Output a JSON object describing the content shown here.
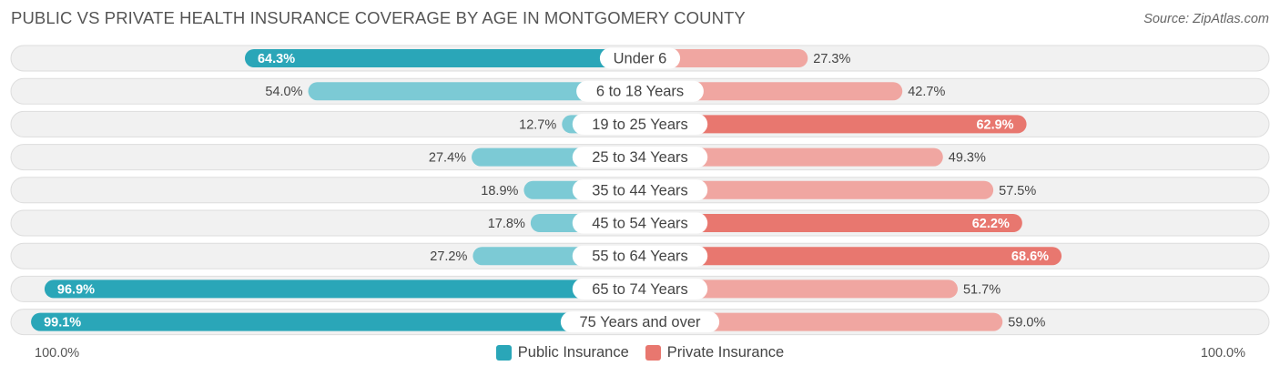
{
  "header": {
    "title": "PUBLIC VS PRIVATE HEALTH INSURANCE COVERAGE BY AGE IN MONTGOMERY COUNTY",
    "source": "Source: ZipAtlas.com"
  },
  "axis": {
    "left_label": "100.0%",
    "right_label": "100.0%"
  },
  "legend": {
    "public_label": "Public Insurance",
    "private_label": "Private Insurance"
  },
  "colors": {
    "public_dark": "#2aa6b8",
    "public_light": "#7ccad5",
    "private_dark": "#e8776f",
    "private_light": "#f0a6a1",
    "row_bg": "#f1f1f1",
    "row_border": "#dddddd"
  },
  "chart_data": {
    "type": "bar",
    "orientation": "horizontal-diverging",
    "title": "PUBLIC VS PRIVATE HEALTH INSURANCE COVERAGE BY AGE IN MONTGOMERY COUNTY",
    "xlim": [
      -100,
      100
    ],
    "categories": [
      "Under 6",
      "6 to 18 Years",
      "19 to 25 Years",
      "25 to 34 Years",
      "35 to 44 Years",
      "45 to 54 Years",
      "55 to 64 Years",
      "65 to 74 Years",
      "75 Years and over"
    ],
    "series": [
      {
        "name": "Public Insurance",
        "values": [
          64.3,
          54.0,
          12.7,
          27.4,
          18.9,
          17.8,
          27.2,
          96.9,
          99.1
        ],
        "labels": [
          "64.3%",
          "54.0%",
          "12.7%",
          "27.4%",
          "18.9%",
          "17.8%",
          "27.2%",
          "96.9%",
          "99.1%"
        ]
      },
      {
        "name": "Private Insurance",
        "values": [
          27.3,
          42.7,
          62.9,
          49.3,
          57.5,
          62.2,
          68.6,
          51.7,
          59.0
        ],
        "labels": [
          "27.3%",
          "42.7%",
          "62.9%",
          "49.3%",
          "57.5%",
          "62.2%",
          "68.6%",
          "51.7%",
          "59.0%"
        ]
      }
    ]
  }
}
